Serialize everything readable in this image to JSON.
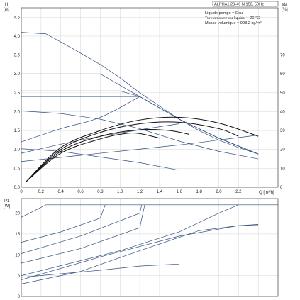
{
  "header": {
    "title": "ALPHA1 20-40 N 150, 50Hz",
    "info_lines": [
      "Liquide pompé = Eau",
      "Température du liquide = 20 °C",
      "Masse volumique = 998.2 kg/m³"
    ]
  },
  "colors": {
    "series": "#2f4f7f",
    "efficiency": "#111111",
    "grid": "#d4d4d4"
  },
  "chart_data": [
    {
      "type": "line",
      "ylabel": "H",
      "yunit": "[m]",
      "y2label": "eta",
      "y2unit": "[%]",
      "xlabel": "Q [m³/h]",
      "xlim": [
        0,
        2.6
      ],
      "ylim": [
        0,
        4.75
      ],
      "y2lim": [
        0,
        95
      ],
      "xticks": [
        "0",
        "0.2",
        "0.4",
        "0.6",
        "0.8",
        "1.0",
        "1.2",
        "1.4",
        "1.6",
        "1.8",
        "2.0",
        "2.2"
      ],
      "yticks": [
        "0.0",
        "0.5",
        "1.0",
        "1.5",
        "2.0",
        "2.5",
        "3.0",
        "3.5",
        "4.0",
        "4.5"
      ],
      "y2ticks": [
        "0",
        "10",
        "20",
        "30",
        "40",
        "50",
        "60",
        "70"
      ],
      "grid": true,
      "series": [
        {
          "kind": "head",
          "points": [
            [
              0,
              4.1
            ],
            [
              0.25,
              4.06
            ],
            [
              0.5,
              3.7
            ],
            [
              0.8,
              3.25
            ],
            [
              1.0,
              2.9
            ],
            [
              1.2,
              2.5
            ],
            [
              1.4,
              2.15
            ],
            [
              1.6,
              1.8
            ],
            [
              1.8,
              1.5
            ],
            [
              2.0,
              1.25
            ],
            [
              2.2,
              1.05
            ],
            [
              2.4,
              0.88
            ]
          ]
        },
        {
          "kind": "head",
          "points": [
            [
              0,
              3.0
            ],
            [
              0.8,
              3.0
            ],
            [
              1.2,
              2.4
            ],
            [
              1.6,
              1.8
            ],
            [
              2.0,
              1.3
            ],
            [
              2.4,
              0.88
            ]
          ]
        },
        {
          "kind": "head",
          "points": [
            [
              0,
              2.55
            ],
            [
              1.0,
              2.55
            ],
            [
              1.2,
              2.4
            ],
            [
              1.6,
              1.8
            ],
            [
              2.0,
              1.3
            ],
            [
              2.4,
              0.88
            ]
          ]
        },
        {
          "kind": "head",
          "points": [
            [
              0,
              2.4
            ],
            [
              1.2,
              2.4
            ],
            [
              1.6,
              1.8
            ],
            [
              2.0,
              1.3
            ],
            [
              2.4,
              0.88
            ]
          ]
        },
        {
          "kind": "head",
          "points": [
            [
              0,
              2.02
            ],
            [
              0.4,
              1.95
            ],
            [
              0.8,
              1.8
            ],
            [
              1.2,
              1.55
            ],
            [
              1.6,
              1.22
            ],
            [
              2.0,
              0.95
            ],
            [
              2.4,
              0.75
            ]
          ]
        },
        {
          "kind": "head",
          "points": [
            [
              0,
              1.02
            ],
            [
              0.4,
              0.95
            ],
            [
              0.8,
              0.8
            ],
            [
              1.2,
              0.65
            ],
            [
              1.6,
              0.45
            ]
          ]
        },
        {
          "kind": "system",
          "points": [
            [
              0,
              1.2
            ],
            [
              0.4,
              1.55
            ],
            [
              0.8,
              1.85
            ],
            [
              1.2,
              2.4
            ]
          ]
        },
        {
          "kind": "system",
          "points": [
            [
              0,
              0.9
            ],
            [
              0.6,
              1.25
            ],
            [
              1.2,
              1.52
            ],
            [
              1.6,
              1.68
            ]
          ]
        },
        {
          "kind": "system",
          "points": [
            [
              0,
              0.68
            ],
            [
              0.8,
              0.9
            ],
            [
              1.6,
              1.12
            ],
            [
              2.0,
              1.25
            ],
            [
              2.4,
              1.38
            ]
          ]
        },
        {
          "kind": "efficiency",
          "points": [
            [
              0.05,
              0.15
            ],
            [
              0.4,
              1.05
            ],
            [
              0.8,
              1.5
            ],
            [
              1.2,
              1.78
            ],
            [
              1.6,
              1.85
            ],
            [
              2.0,
              1.7
            ],
            [
              2.4,
              1.35
            ]
          ]
        },
        {
          "kind": "efficiency",
          "points": [
            [
              0.05,
              0.15
            ],
            [
              0.4,
              1.0
            ],
            [
              0.8,
              1.45
            ],
            [
              1.2,
              1.68
            ],
            [
              1.6,
              1.72
            ],
            [
              2.0,
              1.55
            ],
            [
              2.2,
              1.35
            ]
          ]
        },
        {
          "kind": "efficiency",
          "points": [
            [
              0.05,
              0.15
            ],
            [
              0.4,
              0.95
            ],
            [
              0.8,
              1.35
            ],
            [
              1.2,
              1.52
            ],
            [
              1.5,
              1.5
            ],
            [
              1.7,
              1.4
            ]
          ]
        },
        {
          "kind": "efficiency",
          "points": [
            [
              0.05,
              0.15
            ],
            [
              0.4,
              0.9
            ],
            [
              0.8,
              1.28
            ],
            [
              1.05,
              1.42
            ],
            [
              1.2,
              1.42
            ],
            [
              1.4,
              1.3
            ]
          ]
        }
      ]
    },
    {
      "type": "line",
      "ylabel": "P1",
      "yunit": "[W]",
      "xlim": [
        0,
        2.6
      ],
      "ylim": [
        0,
        23.5
      ],
      "yticks": [
        "0",
        "5",
        "10",
        "15",
        "20"
      ],
      "grid": true,
      "series": [
        {
          "kind": "power",
          "points": [
            [
              0,
              19
            ],
            [
              0.25,
              22
            ],
            [
              2.6,
              22
            ]
          ]
        },
        {
          "kind": "power",
          "points": [
            [
              0,
              13
            ],
            [
              0.4,
              15.5
            ],
            [
              0.8,
              18.8
            ],
            [
              0.85,
              22
            ]
          ]
        },
        {
          "kind": "power",
          "points": [
            [
              0,
              10.3
            ],
            [
              0.6,
              14.5
            ],
            [
              1.2,
              20
            ],
            [
              1.22,
              22
            ]
          ]
        },
        {
          "kind": "power",
          "points": [
            [
              0,
              8
            ],
            [
              0.6,
              11.5
            ],
            [
              1.2,
              16.5
            ],
            [
              1.25,
              22
            ]
          ]
        },
        {
          "kind": "power",
          "points": [
            [
              0,
              5
            ],
            [
              1.0,
              11
            ],
            [
              1.6,
              15.5
            ],
            [
              2.0,
              20
            ],
            [
              2.2,
              22
            ]
          ]
        },
        {
          "kind": "power",
          "points": [
            [
              0,
              4
            ],
            [
              0.8,
              9.5
            ],
            [
              1.6,
              14.5
            ],
            [
              2.2,
              17
            ],
            [
              2.4,
              17.2
            ]
          ]
        },
        {
          "kind": "power",
          "points": [
            [
              0,
              4.6
            ],
            [
              0.8,
              6.3
            ],
            [
              1.2,
              7.3
            ],
            [
              1.6,
              7.8
            ]
          ]
        },
        {
          "kind": "power",
          "points": [
            [
              0,
              3
            ],
            [
              0.6,
              6
            ],
            [
              1.2,
              11
            ],
            [
              1.8,
              15.8
            ],
            [
              2.2,
              17
            ],
            [
              2.4,
              17.3
            ]
          ]
        }
      ]
    }
  ]
}
